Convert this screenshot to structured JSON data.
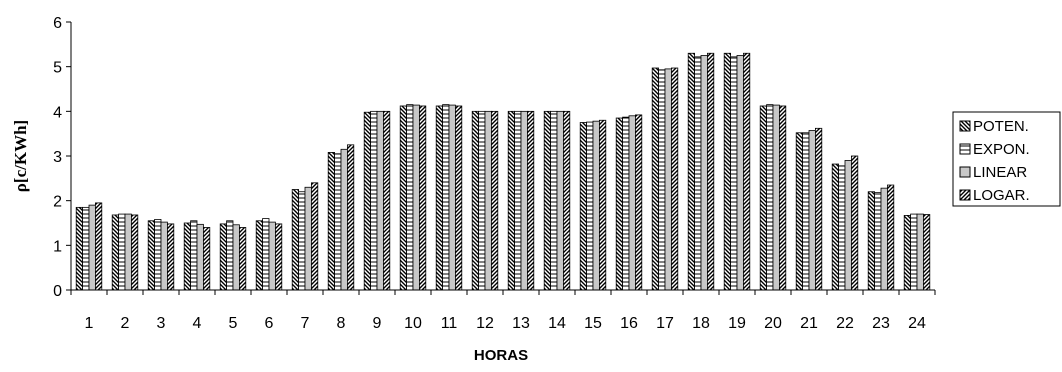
{
  "chart_data": {
    "type": "bar",
    "xlabel": "HORAS",
    "ylabel": "ρ[c/KWh]",
    "ylim": [
      0,
      6
    ],
    "yticks": [
      0,
      1,
      2,
      3,
      4,
      5,
      6
    ],
    "grid": false,
    "legend_position": "right",
    "categories": [
      "1",
      "2",
      "3",
      "4",
      "5",
      "6",
      "7",
      "8",
      "9",
      "10",
      "11",
      "12",
      "13",
      "14",
      "15",
      "16",
      "17",
      "18",
      "19",
      "20",
      "21",
      "22",
      "23",
      "24"
    ],
    "series": [
      {
        "name": "POTEN.",
        "pattern": "diagonal-down",
        "values": [
          1.85,
          1.68,
          1.55,
          1.5,
          1.48,
          1.55,
          2.25,
          3.08,
          3.98,
          4.12,
          4.12,
          4.0,
          4.0,
          4.0,
          3.75,
          3.85,
          4.97,
          5.3,
          5.3,
          4.12,
          3.52,
          2.82,
          2.2,
          1.67
        ]
      },
      {
        "name": "EXPON.",
        "pattern": "horizontal-lines",
        "values": [
          1.85,
          1.7,
          1.58,
          1.55,
          1.55,
          1.6,
          2.2,
          3.05,
          4.0,
          4.15,
          4.15,
          4.0,
          4.0,
          4.0,
          3.76,
          3.87,
          4.93,
          5.22,
          5.22,
          4.15,
          3.52,
          2.78,
          2.18,
          1.7
        ]
      },
      {
        "name": "LINEAR",
        "pattern": "grey",
        "values": [
          1.9,
          1.7,
          1.52,
          1.47,
          1.46,
          1.52,
          2.3,
          3.15,
          4.0,
          4.14,
          4.14,
          4.0,
          4.0,
          4.0,
          3.78,
          3.9,
          4.95,
          5.25,
          5.25,
          4.14,
          3.57,
          2.9,
          2.28,
          1.7
        ]
      },
      {
        "name": "LOGAR.",
        "pattern": "diagonal-up",
        "values": [
          1.95,
          1.68,
          1.48,
          1.4,
          1.4,
          1.48,
          2.4,
          3.25,
          4.0,
          4.12,
          4.12,
          4.0,
          4.0,
          4.0,
          3.8,
          3.92,
          4.97,
          5.3,
          5.3,
          4.12,
          3.62,
          3.0,
          2.35,
          1.69
        ]
      }
    ]
  }
}
